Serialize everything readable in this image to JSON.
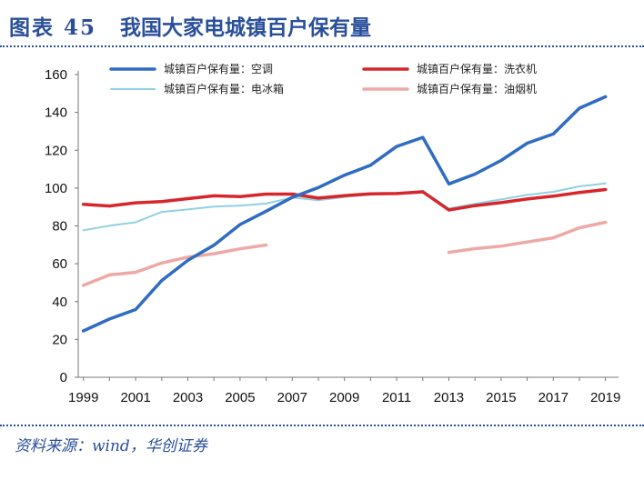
{
  "header": {
    "figure_number": "图表 45",
    "title": "我国大家电城镇百户保有量"
  },
  "source": "资料来源：wind，华创证券",
  "chart_data": {
    "type": "line",
    "title": "我国大家电城镇百户保有量",
    "xlabel": "",
    "ylabel": "",
    "ylim": [
      0,
      160
    ],
    "yticks": [
      0,
      20,
      40,
      60,
      80,
      100,
      120,
      140,
      160
    ],
    "xlim": [
      1998.8,
      2019.5
    ],
    "xticks": [
      1999,
      2001,
      2003,
      2005,
      2007,
      2009,
      2011,
      2013,
      2015,
      2017,
      2019
    ],
    "grid": false,
    "legend_position": "top",
    "series": [
      {
        "name": "城镇百户保有量：空调",
        "color": "#2f6cc2",
        "width": 3.5,
        "x": [
          1999,
          2000,
          2001,
          2002,
          2003,
          2004,
          2005,
          2006,
          2007,
          2008,
          2009,
          2010,
          2011,
          2012,
          2013,
          2014,
          2015,
          2016,
          2017,
          2018,
          2019
        ],
        "y": [
          24.5,
          30.8,
          35.8,
          51.1,
          61.8,
          69.8,
          80.7,
          87.8,
          95.1,
          100.3,
          106.8,
          112.1,
          122.0,
          126.8,
          102.2,
          107.4,
          114.6,
          123.7,
          128.6,
          142.2,
          148.3
        ]
      },
      {
        "name": "城镇百户保有量：洗衣机",
        "color": "#d6262b",
        "width": 3.5,
        "x": [
          1999,
          2000,
          2001,
          2002,
          2003,
          2004,
          2005,
          2006,
          2007,
          2008,
          2009,
          2010,
          2011,
          2012,
          2013,
          2014,
          2015,
          2016,
          2017,
          2018,
          2019
        ],
        "y": [
          91.4,
          90.5,
          92.2,
          92.9,
          94.4,
          95.9,
          95.5,
          96.8,
          96.8,
          94.7,
          96.0,
          96.9,
          97.1,
          98.0,
          88.4,
          90.7,
          92.3,
          94.2,
          95.7,
          97.7,
          99.2
        ]
      },
      {
        "name": "城镇百户保有量：电冰箱",
        "color": "#8fd1e0",
        "width": 2,
        "x": [
          1999,
          2000,
          2001,
          2002,
          2003,
          2004,
          2005,
          2006,
          2007,
          2008,
          2009,
          2010,
          2011,
          2012,
          2013,
          2014,
          2015,
          2016,
          2017,
          2018,
          2019
        ],
        "y": [
          77.7,
          80.1,
          81.9,
          87.4,
          88.7,
          90.2,
          90.7,
          91.8,
          95.0,
          93.6,
          95.3,
          96.6,
          97.2,
          98.5,
          89.2,
          91.7,
          94.0,
          96.4,
          98.0,
          100.9,
          102.5
        ]
      },
      {
        "name": "城镇百户保有量：油烟机",
        "color": "#eda9a5",
        "width": 3.5,
        "x": [
          1999,
          2000,
          2001,
          2002,
          2003,
          2004,
          2005,
          2006,
          2013,
          2014,
          2015,
          2016,
          2017,
          2018,
          2019
        ],
        "y": [
          48.6,
          54.1,
          55.5,
          60.4,
          63.5,
          65.3,
          67.9,
          69.9,
          66.0,
          68.0,
          69.3,
          71.5,
          73.7,
          79.0,
          81.9
        ],
        "segments": [
          [
            0,
            7
          ],
          [
            8,
            14
          ]
        ]
      }
    ]
  }
}
